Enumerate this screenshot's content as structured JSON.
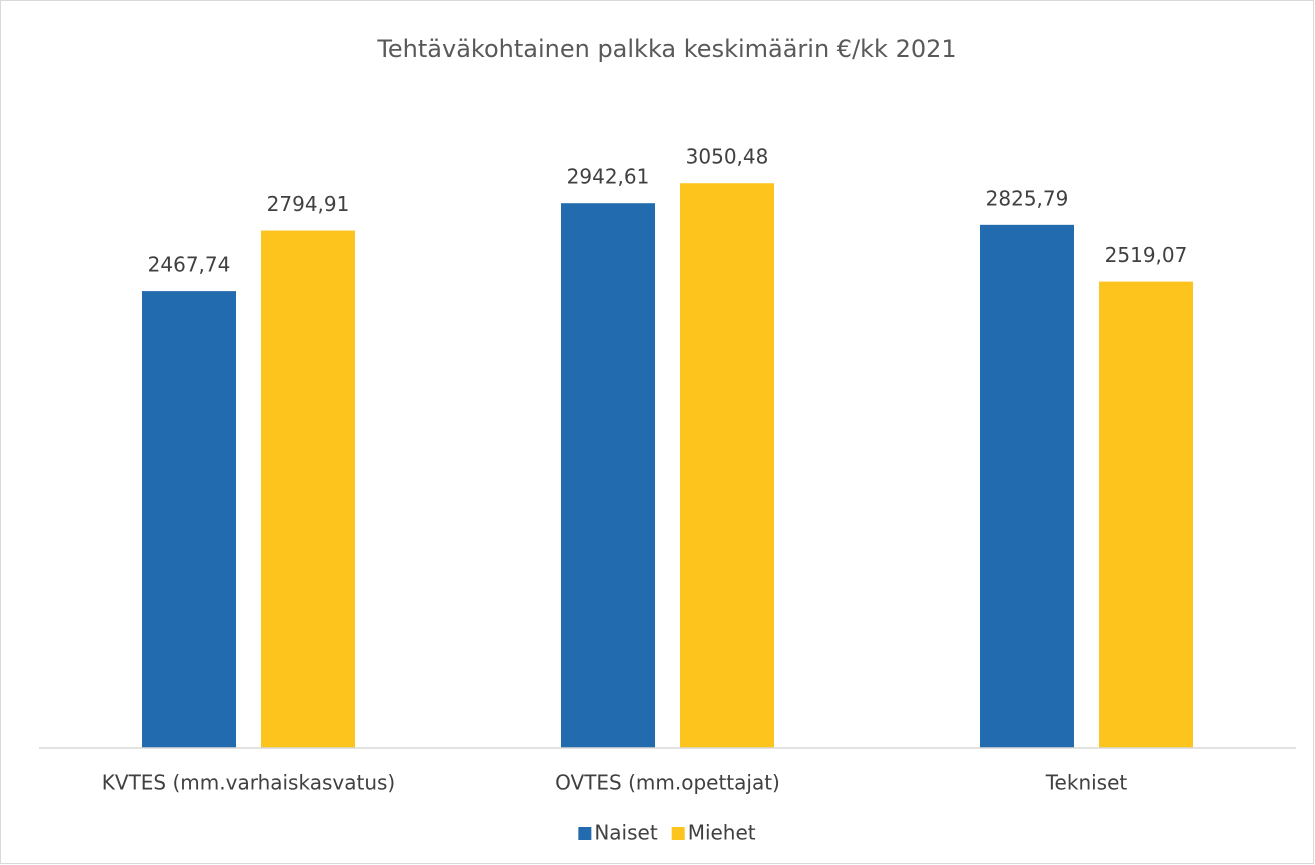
{
  "chart_data": {
    "type": "bar",
    "title": "Tehtäväkohtainen palkka keskimäärin €/kk 2021",
    "categories": [
      "KVTES (mm.varhaiskasvatus)",
      "OVTES (mm.opettajat)",
      "Tekniset"
    ],
    "series": [
      {
        "name": "Naiset",
        "color": "#226baf",
        "values": [
          2467.74,
          2942.61,
          2825.79
        ],
        "value_labels": [
          "2467,74",
          "2942,61",
          "2825,79"
        ]
      },
      {
        "name": "Miehet",
        "color": "#fdc41d",
        "values": [
          2794.91,
          3050.48,
          2519.07
        ],
        "value_labels": [
          "2794,91",
          "3050,48",
          "2519,07"
        ]
      }
    ],
    "ylim": [
      0,
      3500
    ],
    "legend": "bottom"
  }
}
